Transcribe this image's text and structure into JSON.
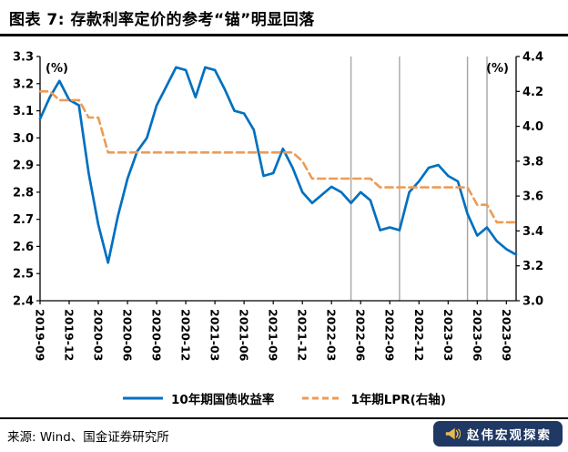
{
  "header": {
    "title": "图表 7: 存款利率定价的参考“锚”明显回落"
  },
  "chart_data": {
    "type": "line",
    "title": "存款利率定价的参考“锚”明显回落",
    "left_axis": {
      "unit": "(%)",
      "min": 2.4,
      "max": 3.3,
      "ticks": [
        "3.3",
        "3.2",
        "3.1",
        "3.0",
        "2.9",
        "2.8",
        "2.7",
        "2.6",
        "2.5",
        "2.4"
      ]
    },
    "right_axis": {
      "unit": "(%)",
      "min": 3.0,
      "max": 4.4,
      "ticks": [
        "4.4",
        "4.2",
        "4.0",
        "3.8",
        "3.6",
        "3.4",
        "3.2",
        "3.0"
      ]
    },
    "x_tick_labels": [
      "2019-09",
      "2019-12",
      "2020-03",
      "2020-06",
      "2020-09",
      "2020-12",
      "2021-03",
      "2021-06",
      "2021-09",
      "2021-12",
      "2022-03",
      "2022-06",
      "2022-09",
      "2022-12",
      "2023-03",
      "2023-06",
      "2023-09"
    ],
    "months": [
      "2019-09",
      "2019-10",
      "2019-11",
      "2019-12",
      "2020-01",
      "2020-02",
      "2020-03",
      "2020-04",
      "2020-05",
      "2020-06",
      "2020-07",
      "2020-08",
      "2020-09",
      "2020-10",
      "2020-11",
      "2020-12",
      "2021-01",
      "2021-02",
      "2021-03",
      "2021-04",
      "2021-05",
      "2021-06",
      "2021-07",
      "2021-08",
      "2021-09",
      "2021-10",
      "2021-11",
      "2021-12",
      "2022-01",
      "2022-02",
      "2022-03",
      "2022-04",
      "2022-05",
      "2022-06",
      "2022-07",
      "2022-08",
      "2022-09",
      "2022-10",
      "2022-11",
      "2022-12",
      "2023-01",
      "2023-02",
      "2023-03",
      "2023-04",
      "2023-05",
      "2023-06",
      "2023-07",
      "2023-08",
      "2023-09",
      "2023-10"
    ],
    "series": [
      {
        "name": "10年期国债收益率",
        "axis": "left",
        "color": "#0070C0",
        "dash": null,
        "width": 2.7,
        "values": [
          3.07,
          3.15,
          3.21,
          3.14,
          3.12,
          2.87,
          2.68,
          2.54,
          2.71,
          2.85,
          2.95,
          3.0,
          3.12,
          3.19,
          3.26,
          3.25,
          3.15,
          3.26,
          3.25,
          3.18,
          3.1,
          3.09,
          3.03,
          2.86,
          2.87,
          2.96,
          2.89,
          2.8,
          2.76,
          2.79,
          2.82,
          2.8,
          2.76,
          2.8,
          2.77,
          2.66,
          2.67,
          2.66,
          2.8,
          2.84,
          2.89,
          2.9,
          2.86,
          2.84,
          2.72,
          2.64,
          2.67,
          2.62,
          2.59,
          2.57
        ]
      },
      {
        "name": "1年期LPR(右轴)",
        "axis": "right",
        "color": "#ED9B54",
        "dash": "8,5",
        "width": 2.6,
        "values": [
          4.2,
          4.2,
          4.15,
          4.15,
          4.15,
          4.05,
          4.05,
          3.85,
          3.85,
          3.85,
          3.85,
          3.85,
          3.85,
          3.85,
          3.85,
          3.85,
          3.85,
          3.85,
          3.85,
          3.85,
          3.85,
          3.85,
          3.85,
          3.85,
          3.85,
          3.85,
          3.85,
          3.8,
          3.7,
          3.7,
          3.7,
          3.7,
          3.7,
          3.7,
          3.7,
          3.65,
          3.65,
          3.65,
          3.65,
          3.65,
          3.65,
          3.65,
          3.65,
          3.65,
          3.65,
          3.55,
          3.55,
          3.45,
          3.45,
          3.45
        ]
      }
    ],
    "event_vlines": {
      "color": "#A6A6A6",
      "months": [
        "2022-05",
        "2022-10",
        "2023-05",
        "2023-07"
      ]
    },
    "legend_position": "bottom",
    "grid": "off"
  },
  "footer": {
    "source": "来源: Wind、国金证券研究所"
  },
  "watermark": {
    "text": "赵伟宏观探索",
    "icon": "megaphone-icon",
    "bg_color": "#1F3864",
    "text_color": "#FFFFFF",
    "icon_color": "#E8B94F"
  }
}
